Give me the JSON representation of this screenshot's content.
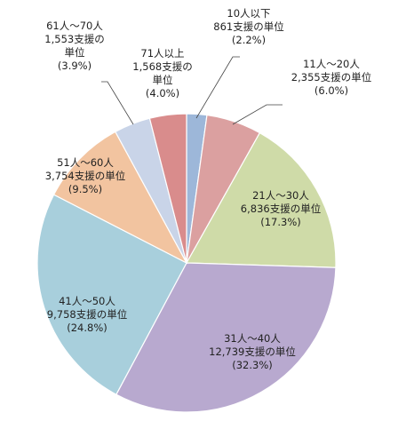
{
  "chart_data": {
    "type": "pie",
    "title": "",
    "start_angle_deg": 0,
    "direction": "clockwise",
    "slices": [
      {
        "name": "10人以下",
        "value": 861,
        "count_label": "861支援の単位",
        "percent_label": "(2.2%)",
        "color": "#9db7d9"
      },
      {
        "name": "11人～20人",
        "value": 2355,
        "count_label": "2,355支援の単位",
        "percent_label": "(6.0%)",
        "color": "#dba0a0"
      },
      {
        "name": "21人～30人",
        "value": 6836,
        "count_label": "6,836支援の単位",
        "percent_label": "(17.3%)",
        "color": "#cfdba8"
      },
      {
        "name": "31人～40人",
        "value": 12739,
        "count_label": "12,739支援の単位",
        "percent_label": "(32.3%)",
        "color": "#b8a9cf"
      },
      {
        "name": "41人～50人",
        "value": 9758,
        "count_label": "9,758支援の単位",
        "percent_label": "(24.8%)",
        "color": "#a8cfdc"
      },
      {
        "name": "51人～60人",
        "value": 3754,
        "count_label": "3,754支援の単位",
        "percent_label": "(9.5%)",
        "color": "#f2c4a0"
      },
      {
        "name": "61人～70人",
        "value": 1553,
        "count_label": "1,553支援の単位",
        "percent_label": "(3.9%)",
        "color": "#c9d4e8"
      },
      {
        "name": "71人以上",
        "value": 1568,
        "count_label": "1,568支援の単位",
        "percent_label": "(4.0%)",
        "color": "#d98c8c"
      }
    ]
  }
}
